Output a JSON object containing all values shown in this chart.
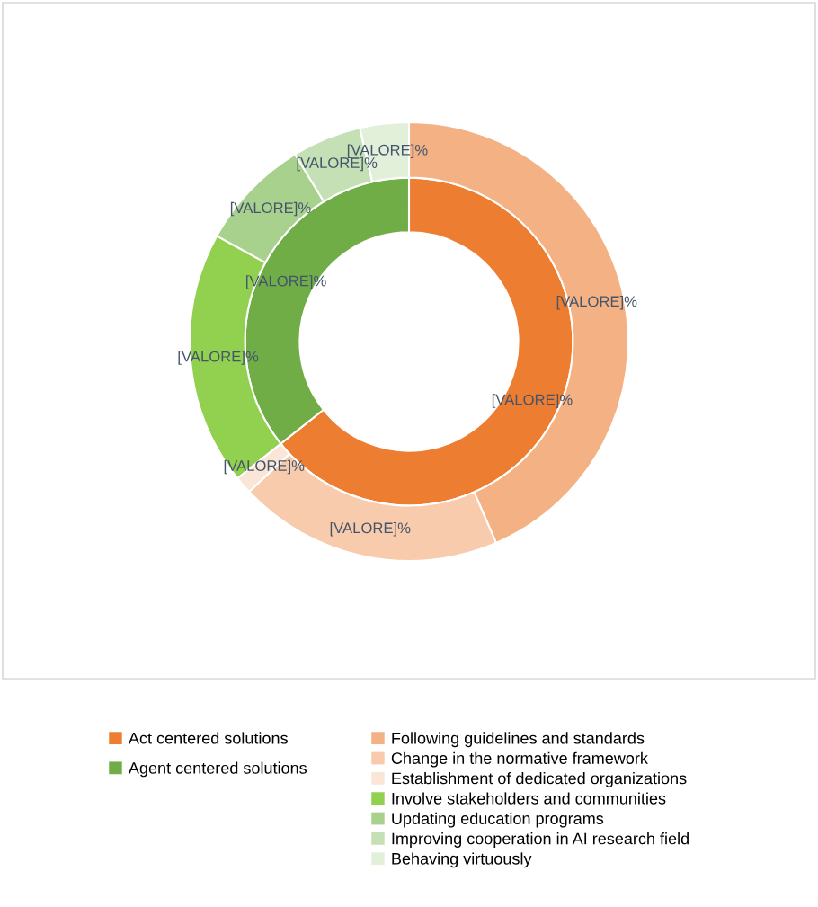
{
  "chart_data": {
    "type": "donut",
    "legend": "bottom",
    "categories": [
      "Act centered solutions",
      "Agent centered solutions",
      "Following guidelines and standards",
      "Change in the normative framework",
      "Establishment of dedicated organizations",
      "Involve stakeholders and communities",
      "Updating education programs",
      "Improving cooperation in AI research field",
      "Behaving virtuously"
    ],
    "colors": [
      "#ed7d31",
      "#70ad47",
      "#f4b183",
      "#f8cbad",
      "#fbe5d6",
      "#92d050",
      "#a9d18e",
      "#c5e0b4",
      "#e2f0d9"
    ],
    "series": [
      {
        "values": [
          64.3,
          35.7,
          null,
          null,
          null,
          null,
          null,
          null,
          null
        ],
        "value_labels": [
          "[VALORE]%",
          "[VALORE]%",
          null,
          null,
          null,
          null,
          null,
          null,
          null
        ]
      },
      {
        "values": [
          null,
          null,
          43.5,
          19.5,
          1.3,
          18.7,
          8.3,
          5.1,
          3.6
        ],
        "value_labels": [
          null,
          null,
          "[VALORE]%",
          "[VALORE]%",
          "[VALORE]%",
          "[VALORE]%",
          "[VALORE]%",
          "[VALORE]%",
          "[VALORE]%"
        ]
      }
    ]
  }
}
